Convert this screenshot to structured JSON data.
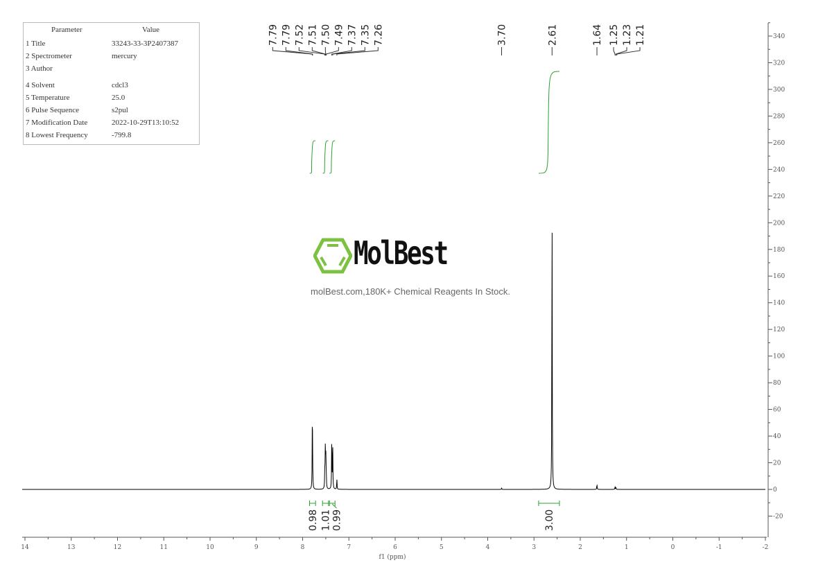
{
  "parameters": {
    "header": [
      "Parameter",
      "Value"
    ],
    "rows": [
      [
        "1 Title",
        "33243-33-3P2407387"
      ],
      [
        "2 Spectrometer",
        "mercury"
      ],
      [
        "3 Author",
        ""
      ],
      [
        "4 Solvent",
        "cdcl3"
      ],
      [
        "5 Temperature",
        "25.0"
      ],
      [
        "6 Pulse Sequence",
        "s2pul"
      ],
      [
        "7 Modification Date",
        "2022-10-29T13:10:52"
      ],
      [
        "8 Lowest Frequency",
        "-799.8"
      ]
    ]
  },
  "watermark": {
    "brand": "MolBest",
    "tagline": "molBest.com,180K+ Chemical Reagents In Stock.",
    "logo_color": "#7dc142"
  },
  "chart_data": {
    "type": "line",
    "xlabel": "f1 (ppm)",
    "ylabel": "",
    "xlim": [
      14,
      -2
    ],
    "ylim": [
      -35,
      350
    ],
    "x_reversed": true,
    "xticks": [
      14,
      13,
      12,
      11,
      10,
      9,
      8,
      7,
      6,
      5,
      4,
      3,
      2,
      1,
      0,
      -1,
      -2
    ],
    "yticks": [
      -20,
      0,
      20,
      40,
      60,
      80,
      100,
      120,
      140,
      160,
      180,
      200,
      220,
      240,
      260,
      280,
      300,
      320,
      340
    ],
    "line_color": "#000000",
    "integral_color": "#2ca02c",
    "peaks": [
      {
        "ppm": 7.79,
        "height": 47
      },
      {
        "ppm": 7.785,
        "height": 20
      },
      {
        "ppm": 7.52,
        "height": 14
      },
      {
        "ppm": 7.51,
        "height": 27
      },
      {
        "ppm": 7.5,
        "height": 26
      },
      {
        "ppm": 7.49,
        "height": 12
      },
      {
        "ppm": 7.37,
        "height": 41
      },
      {
        "ppm": 7.35,
        "height": 34
      },
      {
        "ppm": 7.26,
        "height": 8
      },
      {
        "ppm": 3.7,
        "height": 1
      },
      {
        "ppm": 2.61,
        "height": 222
      },
      {
        "ppm": 1.64,
        "height": 4
      },
      {
        "ppm": 1.25,
        "height": 2
      },
      {
        "ppm": 1.23,
        "height": 1.5
      }
    ],
    "peak_labels": [
      {
        "group": [
          "7.79",
          "7.79",
          "7.52",
          "7.51",
          "7.50",
          "7.49",
          "7.37",
          "7.35",
          "7.26"
        ],
        "ppm": [
          7.79,
          7.785,
          7.52,
          7.51,
          7.5,
          7.49,
          7.37,
          7.35,
          7.26
        ]
      },
      {
        "group": [
          "3.70"
        ],
        "ppm": [
          3.7
        ]
      },
      {
        "group": [
          "2.61"
        ],
        "ppm": [
          2.61
        ]
      },
      {
        "group": [
          "1.64"
        ],
        "ppm": [
          1.64
        ]
      },
      {
        "group": [
          "1.25",
          "1.23",
          "1.21"
        ],
        "ppm": [
          1.25,
          1.23,
          1.21
        ]
      }
    ],
    "integrals": [
      {
        "from": 7.85,
        "to": 7.72,
        "value": "0.98"
      },
      {
        "from": 7.57,
        "to": 7.44,
        "value": "1.01"
      },
      {
        "from": 7.42,
        "to": 7.3,
        "value": "0.99"
      },
      {
        "from": 2.9,
        "to": 2.45,
        "value": "3.00"
      }
    ]
  }
}
